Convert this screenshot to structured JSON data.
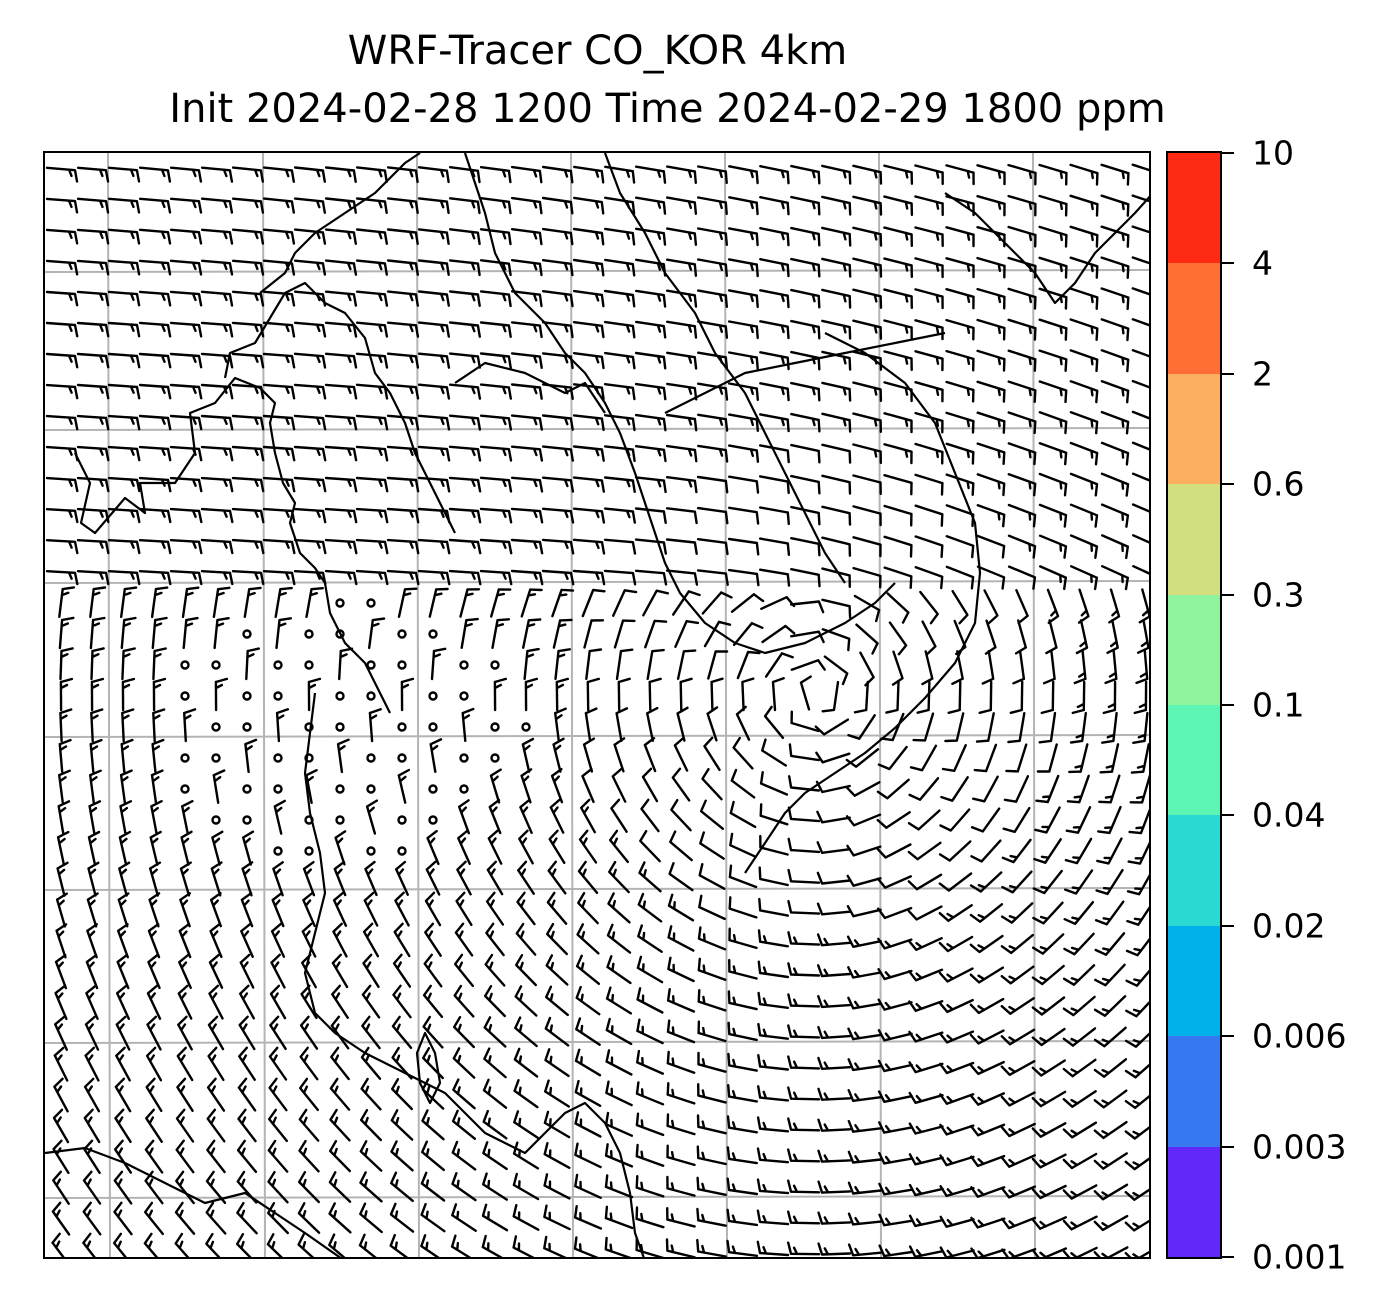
{
  "title": {
    "line1": "WRF-Tracer CO_KOR 4km",
    "line2": "Init 2024-02-28 1200 Time 2024-02-29 1800 ppm"
  },
  "colorbar": {
    "labels": [
      "10",
      "4",
      "2",
      "0.6",
      "0.3",
      "0.1",
      "0.04",
      "0.02",
      "0.006",
      "0.003",
      "0.001"
    ],
    "colors_top_to_bottom": [
      "#ff2a14",
      "#ff6e35",
      "#fdae60",
      "#d3de7f",
      "#8ff29c",
      "#5cf5b4",
      "#2bd9d3",
      "#00b2e9",
      "#3578f0",
      "#6228fa"
    ]
  },
  "map": {
    "gridline_color": "#b4b4b4",
    "coastline_color": "#000000",
    "barb_color": "#000000",
    "gridline_count_x": 7,
    "gridline_count_y": 7
  }
}
